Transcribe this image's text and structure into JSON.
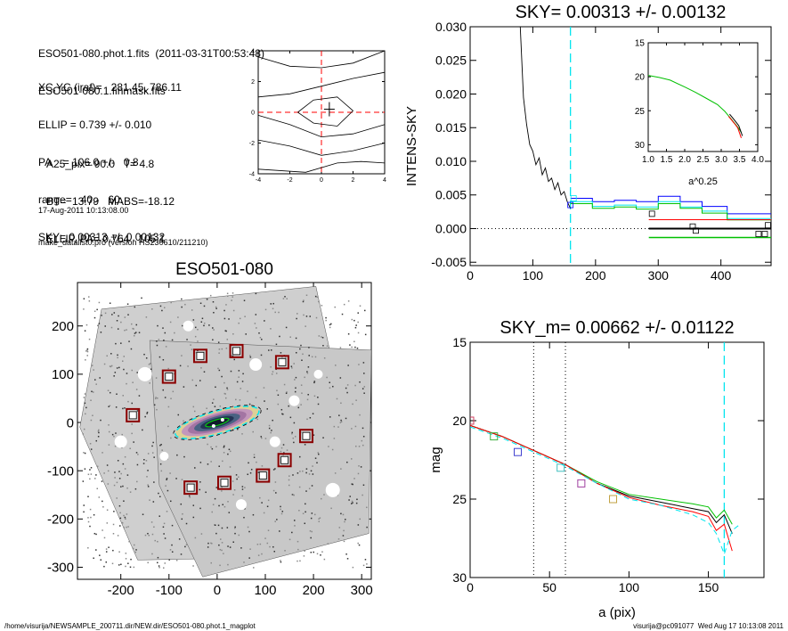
{
  "header": {
    "line1": "ESO501-080.phot.1.fits  (2011-03-31T00:53:48)",
    "line2": "ESO501-080.1.finmask.fits",
    "xcyc": "XC,YC (iraf)=   281.45, 786.11",
    "ellip": "ELLIP = 0.739 +/- 0.010",
    "pa": "PA    = 106.0 +/-   0.8",
    "range": "range=   40.-   60.",
    "sky": "SKY= 0.00313 +/- 0.00132",
    "a25": "A25_pix= 90.0   T= 4.8",
    "bt": "BT=  13.79   MABS=-18.12",
    "ellpa": "ELLIP, PA= 0.764   105.1",
    "date": "17-Aug-2011 10:13:08.00",
    "prog": "make_datalist0.pro (version HS230610/211210)"
  },
  "footer": {
    "left": "/home/visurija/NEWSAMPLE_200711.dir/NEW.dir/ESO501-080.phot.1_magplot",
    "right": "visurija@pc091077  Wed Aug 17 10:13:08 2011"
  },
  "colors": {
    "cyan": "#00e5ee",
    "red": "#ff0000",
    "green": "#00c000",
    "blue": "#0000ff",
    "black": "#000000",
    "darkred": "#8b0000"
  },
  "chart_data": [
    {
      "id": "center-contours",
      "type": "line",
      "title": "",
      "xlim": [
        -4,
        4
      ],
      "ylim": [
        -4,
        4
      ],
      "xticks": [
        "-4",
        "-2",
        "0",
        "2",
        "4"
      ],
      "yticks": [
        "-4",
        "-2",
        "0",
        "2",
        "4"
      ],
      "center": [
        0.5,
        0.2
      ]
    },
    {
      "id": "sky-profile",
      "type": "line",
      "title": "SKY= 0.00313 +/- 0.00132",
      "xlabel": "",
      "ylabel": "INTENS-SKY",
      "xlim": [
        0,
        480
      ],
      "ylim": [
        -0.0055,
        0.03
      ],
      "xticks": [
        "0",
        "100",
        "200",
        "300",
        "400"
      ],
      "yticks": [
        "-0.005",
        "0.000",
        "0.005",
        "0.010",
        "0.015",
        "0.020",
        "0.025",
        "0.030"
      ],
      "vline": 160,
      "profile_x": [
        80,
        85,
        90,
        95,
        100,
        105,
        110,
        115,
        120,
        125,
        130,
        135,
        140,
        145,
        150,
        155,
        160
      ],
      "profile_y": [
        0.03,
        0.0195,
        0.0155,
        0.0125,
        0.0115,
        0.0095,
        0.0105,
        0.008,
        0.009,
        0.007,
        0.0075,
        0.0058,
        0.0068,
        0.005,
        0.0055,
        0.004,
        0.003
      ],
      "series": [
        {
          "color": "blue",
          "x": [
            160,
            195,
            230,
            265,
            300,
            335,
            370,
            410
          ],
          "y": [
            0.0045,
            0.004,
            0.0042,
            0.004,
            0.0048,
            0.004,
            0.0033,
            0.0022
          ]
        },
        {
          "color": "cyan",
          "x": [
            160,
            195,
            230,
            265,
            300,
            335,
            370,
            410
          ],
          "y": [
            0.004,
            0.0033,
            0.0035,
            0.0032,
            0.004,
            0.0032,
            0.0026,
            0.0015
          ]
        },
        {
          "color": "green",
          "x": [
            160,
            195,
            230,
            265,
            300,
            335,
            370,
            410
          ],
          "y": [
            0.0037,
            0.003,
            0.0032,
            0.0029,
            0.0037,
            0.003,
            0.0023,
            0.0013
          ]
        }
      ],
      "squares": [
        {
          "x": 160,
          "y": 0.0035,
          "color": "blue"
        },
        {
          "x": 165,
          "y": 0.0045,
          "color": "cyan"
        },
        {
          "x": 290,
          "y": 0.0022,
          "color": "black"
        },
        {
          "x": 355,
          "y": 0.0003,
          "color": "black"
        },
        {
          "x": 360,
          "y": -0.0003,
          "color": "black"
        },
        {
          "x": 460,
          "y": -0.0008,
          "color": "black"
        },
        {
          "x": 470,
          "y": -0.0008,
          "color": "black"
        },
        {
          "x": 475,
          "y": 0.0005,
          "color": "black"
        }
      ],
      "sky_level": 0.0,
      "sky_upper": 0.00132,
      "sky_lower": -0.00132,
      "inset": {
        "xlabel": "a^0.25",
        "xlim": [
          1.0,
          4.0
        ],
        "ylim": [
          15,
          31
        ],
        "xticks": [
          "1.0",
          "1.5",
          "2.0",
          "2.5",
          "3.0",
          "3.5",
          "4.0"
        ],
        "yticks": [
          "15",
          "20",
          "25",
          "30"
        ],
        "x": [
          1.0,
          1.3,
          1.6,
          2.0,
          2.3,
          2.6,
          2.9,
          3.1,
          3.3,
          3.45,
          3.55
        ],
        "y": [
          19.8,
          20.1,
          20.5,
          21.5,
          22.3,
          23.2,
          24.1,
          25.1,
          26.4,
          27.4,
          28.2
        ]
      }
    },
    {
      "id": "galaxy-image",
      "type": "scatter",
      "title": "ESO501-080",
      "xlim": [
        -290,
        320
      ],
      "ylim": [
        -325,
        290
      ],
      "xticks": [
        "-200",
        "-100",
        "0",
        "100",
        "200",
        "300"
      ],
      "yticks": [
        "-300",
        "-200",
        "-100",
        "0",
        "100",
        "200"
      ],
      "ellipse": {
        "cx": 0,
        "cy": 0,
        "a": 90,
        "b": 23.4,
        "pa": 106
      },
      "sky_boxes": [
        [
          -175,
          15
        ],
        [
          -100,
          95
        ],
        [
          -35,
          138
        ],
        [
          40,
          148
        ],
        [
          135,
          125
        ],
        [
          185,
          -28
        ],
        [
          140,
          -78
        ],
        [
          95,
          -110
        ],
        [
          15,
          -125
        ],
        [
          -55,
          -135
        ]
      ]
    },
    {
      "id": "mag-profile",
      "type": "line",
      "title": "SKY_m=  0.00662 +/- 0.01122",
      "xlabel": "a (pix)",
      "ylabel": "mag",
      "xlim": [
        0,
        185
      ],
      "ylim": [
        15,
        30
      ],
      "xticks": [
        "0",
        "50",
        "100",
        "150"
      ],
      "yticks": [
        "15",
        "20",
        "25",
        "30"
      ],
      "vlines_dotted": [
        40,
        60
      ],
      "vline_cyan": 160,
      "series": [
        {
          "color": "green",
          "x": [
            0,
            20,
            40,
            60,
            80,
            100,
            120,
            140,
            150,
            155,
            160,
            165
          ],
          "y": [
            20.3,
            21.0,
            21.9,
            22.8,
            23.9,
            24.7,
            25.0,
            25.3,
            25.5,
            26.2,
            25.7,
            26.6
          ]
        },
        {
          "color": "black",
          "x": [
            0,
            20,
            40,
            60,
            80,
            100,
            120,
            140,
            150,
            155,
            160,
            165
          ],
          "y": [
            20.3,
            21.0,
            21.9,
            22.8,
            24.0,
            24.8,
            25.2,
            25.6,
            25.8,
            26.5,
            26.0,
            27.2
          ]
        },
        {
          "color": "red",
          "x": [
            0,
            20,
            40,
            60,
            80,
            100,
            120,
            140,
            150,
            155,
            160,
            165
          ],
          "y": [
            20.3,
            21.0,
            21.9,
            22.8,
            24.0,
            24.9,
            25.4,
            25.8,
            26.1,
            27.0,
            26.6,
            28.3
          ]
        },
        {
          "color": "cyan",
          "x": [
            0,
            20,
            40,
            60,
            80,
            100,
            120,
            140,
            150,
            155,
            160,
            165,
            170
          ],
          "y": [
            20.4,
            21.1,
            22.0,
            22.9,
            24.0,
            25.0,
            25.4,
            26.0,
            26.5,
            27.2,
            28.5,
            27.0,
            26.6
          ]
        }
      ],
      "squares": [
        {
          "x": 0,
          "y": 20.0,
          "color": "#d04060"
        },
        {
          "x": 15,
          "y": 21.0,
          "color": "#40b040"
        },
        {
          "x": 30,
          "y": 22.0,
          "color": "#4040d0"
        },
        {
          "x": 57,
          "y": 23.0,
          "color": "#40c0c0"
        },
        {
          "x": 70,
          "y": 24.0,
          "color": "#a040a0"
        },
        {
          "x": 90,
          "y": 25.0,
          "color": "#c0a040"
        }
      ]
    }
  ]
}
